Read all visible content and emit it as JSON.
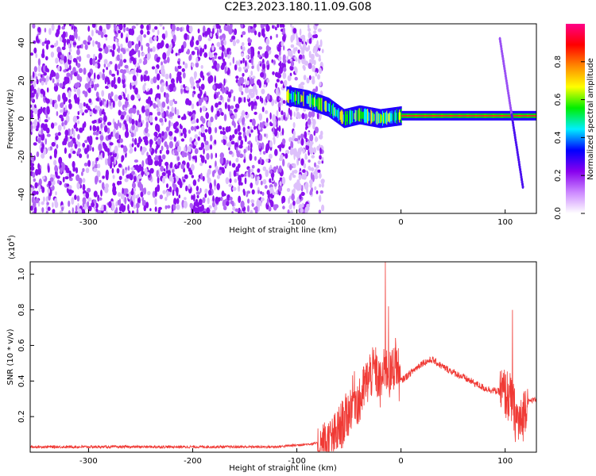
{
  "figure_title": "C2E3.2023.180.11.09.G08",
  "colors": {
    "line": "#f03a35",
    "axis": "#000000",
    "colormap": [
      "#ffffff",
      "#cc88ff",
      "#8800ee",
      "#0000ff",
      "#00eeff",
      "#00ee00",
      "#ffff00",
      "#ff8800",
      "#ff0000",
      "#ff0088"
    ]
  },
  "chart_data": [
    {
      "type": "heatmap",
      "title": "",
      "xlabel": "Height of straight line (km)",
      "ylabel": "Frequency (Hz)",
      "xlim": [
        -356,
        130
      ],
      "ylim": [
        -50,
        50
      ],
      "x_ticks": [
        -300,
        -200,
        -100,
        0,
        100
      ],
      "y_ticks": [
        -40,
        -20,
        0,
        20,
        40
      ],
      "colorbar": {
        "label": "Normalized spectral amplitude",
        "range": [
          0,
          1
        ],
        "ticks": [
          0.0,
          0.2,
          0.4,
          0.6,
          0.8
        ]
      },
      "features": [
        {
          "name": "noise",
          "x_range": [
            -356,
            -75
          ],
          "freq_range": [
            -50,
            50
          ],
          "amplitude": 0.1
        },
        {
          "name": "signal_band",
          "x": [
            -110,
            -90,
            -70,
            -55,
            -40,
            -20,
            0,
            130
          ],
          "freq": [
            12,
            10,
            6,
            0,
            2,
            0,
            1.5,
            1.5
          ],
          "amplitude": 0.9
        },
        {
          "name": "spike",
          "x": [
            95,
            117
          ],
          "freq": [
            42,
            -36
          ],
          "amplitude": 0.15
        }
      ]
    },
    {
      "type": "line",
      "title": "",
      "xlabel": "Height of straight line (km)",
      "ylabel": "SNR (10 * v/v)",
      "y_multiplier_label": "(x10",
      "y_multiplier_exp": "4",
      "y_multiplier_close": ")",
      "xlim": [
        -356,
        130
      ],
      "ylim": [
        0,
        1.07
      ],
      "x_ticks": [
        -300,
        -200,
        -100,
        0,
        100
      ],
      "y_ticks": [
        0.2,
        0.4,
        0.6,
        0.8,
        1.0
      ],
      "series": [
        {
          "x": [
            -356,
            -300,
            -200,
            -120,
            -100,
            -80,
            -65,
            -55,
            -50,
            -45,
            -40,
            -35,
            -30,
            -25,
            -20,
            -15,
            -10,
            -5,
            0,
            10,
            20,
            30,
            40,
            60,
            80,
            100,
            105,
            110,
            115,
            120,
            130
          ],
          "y": [
            0.03,
            0.03,
            0.03,
            0.03,
            0.04,
            0.05,
            0.1,
            0.2,
            0.25,
            0.35,
            0.3,
            0.4,
            0.45,
            0.5,
            0.4,
            0.5,
            0.45,
            0.55,
            0.4,
            0.45,
            0.5,
            0.52,
            0.48,
            0.42,
            0.36,
            0.33,
            0.3,
            0.2,
            0.15,
            0.28,
            0.3
          ]
        }
      ],
      "peaks": [
        {
          "x": -30,
          "y": 0.55
        },
        {
          "x": -15,
          "y": 1.07
        },
        {
          "x": -12,
          "y": 0.82
        },
        {
          "x": -5,
          "y": 0.6
        },
        {
          "x": 107,
          "y": 0.8
        }
      ]
    }
  ]
}
